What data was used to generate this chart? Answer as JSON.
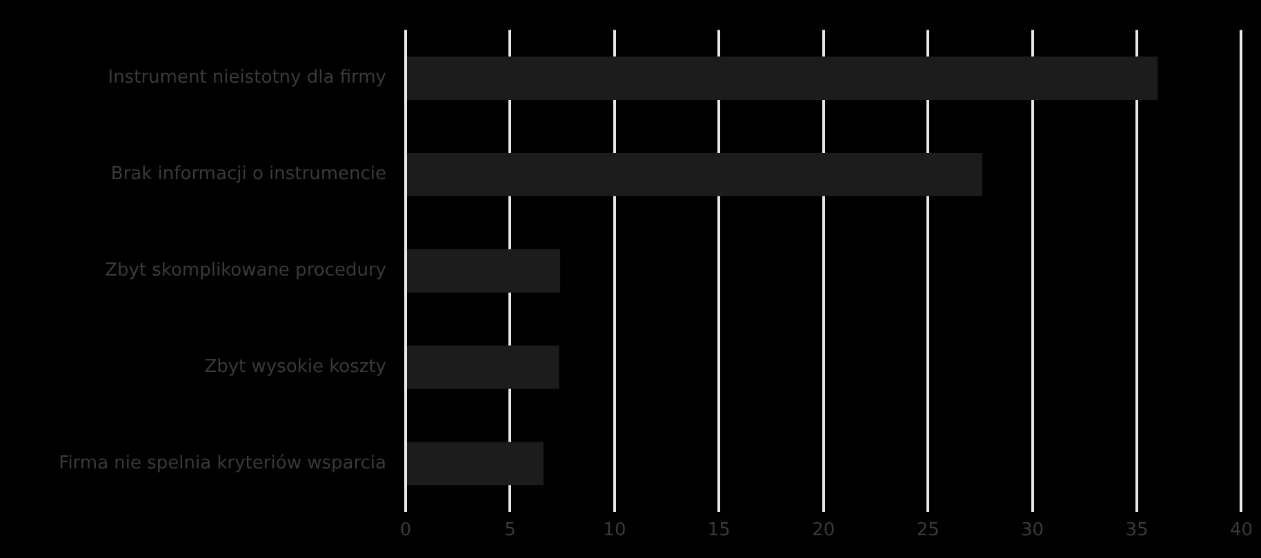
{
  "chart_data": {
    "type": "bar",
    "orientation": "horizontal",
    "categories": [
      "Instrument nieistotny dla firmy",
      "Brak informacji o instrumencie",
      "Zbyt skomplikowane procedury",
      "Zbyt wysokie koszty",
      "Firma nie spelnia kryteriów wsparcia"
    ],
    "values": [
      36,
      27.6,
      7.4,
      7.35,
      6.6
    ],
    "color": "#1c1c1c",
    "xlim": [
      0,
      40
    ],
    "xticks": [
      0,
      5,
      10,
      15,
      20,
      25,
      30,
      35,
      40
    ],
    "grid": "x",
    "legend": false
  }
}
